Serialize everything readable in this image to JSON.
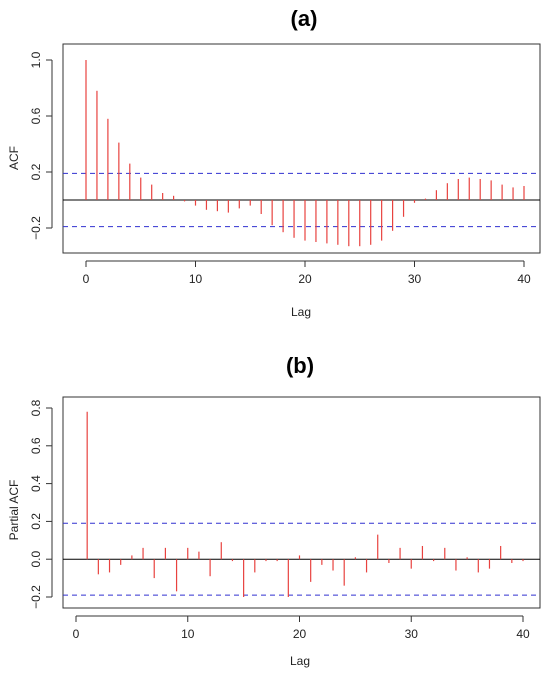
{
  "chart_data": [
    {
      "type": "bar",
      "title": "(a)",
      "xlabel": "Lag",
      "ylabel": "ACF",
      "xlim": [
        0,
        40
      ],
      "ylim": [
        -0.3,
        1.0
      ],
      "xticks": [
        "0",
        "10",
        "20",
        "30",
        "40"
      ],
      "yticks": [
        "-0.2",
        "0.2",
        "0.6",
        "1.0"
      ],
      "confidence_band": 0.19,
      "grid": false,
      "colors": {
        "bars": "#e8423f",
        "band": "#3030d0",
        "axis": "#000000"
      },
      "lags": [
        0,
        1,
        2,
        3,
        4,
        5,
        6,
        7,
        8,
        9,
        10,
        11,
        12,
        13,
        14,
        15,
        16,
        17,
        18,
        19,
        20,
        21,
        22,
        23,
        24,
        25,
        26,
        27,
        28,
        29,
        30,
        31,
        32,
        33,
        34,
        35,
        36,
        37,
        38,
        39,
        40
      ],
      "values": [
        1.0,
        0.78,
        0.58,
        0.41,
        0.26,
        0.16,
        0.11,
        0.05,
        0.03,
        -0.01,
        -0.04,
        -0.07,
        -0.08,
        -0.09,
        -0.06,
        -0.04,
        -0.1,
        -0.18,
        -0.23,
        -0.27,
        -0.29,
        -0.3,
        -0.31,
        -0.32,
        -0.33,
        -0.33,
        -0.32,
        -0.29,
        -0.22,
        -0.12,
        -0.02,
        0.01,
        0.07,
        0.12,
        0.15,
        0.16,
        0.15,
        0.14,
        0.11,
        0.09,
        0.1
      ]
    },
    {
      "type": "bar",
      "title": "(b)",
      "xlabel": "Lag",
      "ylabel": "Partial ACF",
      "xlim": [
        0,
        40
      ],
      "ylim": [
        -0.27,
        0.82
      ],
      "xticks": [
        "0",
        "10",
        "20",
        "30",
        "40"
      ],
      "yticks": [
        "-0.2",
        "0.0",
        "0.2",
        "0.4",
        "0.6",
        "0.8"
      ],
      "confidence_band": 0.19,
      "grid": false,
      "colors": {
        "bars": "#e8423f",
        "band": "#3030d0",
        "axis": "#000000"
      },
      "lags": [
        1,
        2,
        3,
        4,
        5,
        6,
        7,
        8,
        9,
        10,
        11,
        12,
        13,
        14,
        15,
        16,
        17,
        18,
        19,
        20,
        21,
        22,
        23,
        24,
        25,
        26,
        27,
        28,
        29,
        30,
        31,
        32,
        33,
        34,
        35,
        36,
        37,
        38,
        39,
        40
      ],
      "values": [
        0.78,
        -0.08,
        -0.07,
        -0.03,
        0.02,
        0.06,
        -0.1,
        0.06,
        -0.17,
        0.06,
        0.04,
        -0.09,
        0.09,
        -0.01,
        -0.2,
        -0.07,
        -0.01,
        -0.01,
        -0.2,
        0.02,
        -0.12,
        -0.03,
        -0.06,
        -0.14,
        0.01,
        -0.07,
        0.13,
        -0.02,
        0.06,
        -0.05,
        0.07,
        -0.01,
        0.06,
        -0.06,
        0.01,
        -0.07,
        -0.05,
        0.07,
        -0.02,
        -0.01
      ]
    }
  ]
}
